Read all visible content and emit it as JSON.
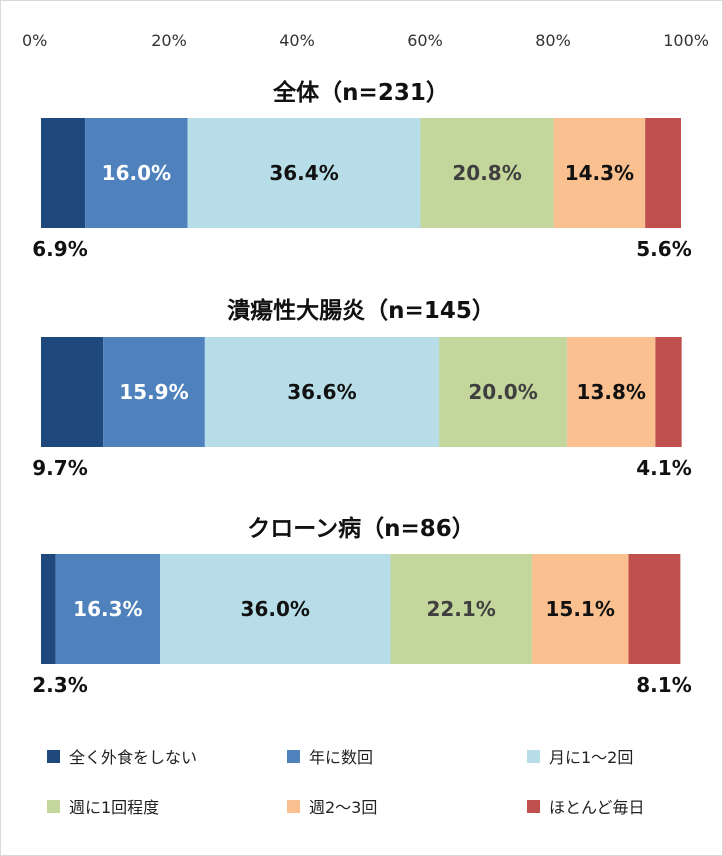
{
  "chart_data": {
    "type": "bar",
    "orientation": "horizontal-stacked-100",
    "axis": {
      "ticks": [
        "0%",
        "20%",
        "40%",
        "60%",
        "80%",
        "100%"
      ],
      "tick_values": [
        0,
        20,
        40,
        60,
        80,
        100
      ],
      "xlim": [
        0,
        100
      ]
    },
    "categories": [
      "全く外食をしない",
      "年に数回",
      "月に1～2回",
      "週に1回程度",
      "週2～3回",
      "ほとんど毎日"
    ],
    "colors": [
      "#1f497d",
      "#4f81bd",
      "#b7dee8",
      "#c3d69b",
      "#fac090",
      "#c0504d"
    ],
    "label_colors": [
      "#ffffff",
      "#ffffff",
      "#111111",
      "#3f3f3f",
      "#111111",
      "#ffffff"
    ],
    "panels": [
      {
        "title": "全体（n=231）",
        "values": [
          6.9,
          16.0,
          36.4,
          20.8,
          14.3,
          5.6
        ],
        "labels": [
          "6.9%",
          "16.0%",
          "36.4%",
          "20.8%",
          "14.3%",
          "5.6%"
        ]
      },
      {
        "title": "潰瘍性大腸炎（n=145）",
        "values": [
          9.7,
          15.9,
          36.6,
          20.0,
          13.8,
          4.1
        ],
        "labels": [
          "9.7%",
          "15.9%",
          "36.6%",
          "20.0%",
          "13.8%",
          "4.1%"
        ]
      },
      {
        "title": "クローン病（n=86）",
        "values": [
          2.3,
          16.3,
          36.0,
          22.1,
          15.1,
          8.1
        ],
        "labels": [
          "2.3%",
          "16.3%",
          "36.0%",
          "22.1%",
          "15.1%",
          "8.1%"
        ]
      }
    ],
    "legend_position": "bottom"
  }
}
